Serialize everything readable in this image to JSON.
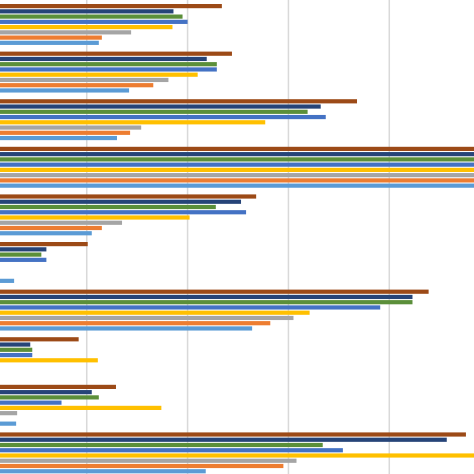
{
  "chart_data": {
    "type": "bar",
    "orientation": "horizontal",
    "grid": true,
    "xlim": [
      0,
      470
    ],
    "gridlines_x": [
      86,
      186,
      286,
      386
    ],
    "categories": [
      "",
      "",
      "",
      "",
      "",
      "",
      "",
      "",
      "",
      ""
    ],
    "series": [
      {
        "color": "#9c4a17",
        "values": [
          220,
          230,
          354,
          474,
          254,
          87,
          425,
          78,
          115,
          462
        ]
      },
      {
        "color": "#264478",
        "values": [
          172,
          205,
          318,
          474,
          239,
          46,
          409,
          30,
          91,
          443
        ]
      },
      {
        "color": "#5b8f3a",
        "values": [
          181,
          215,
          305,
          474,
          214,
          41,
          409,
          32,
          98,
          320
        ]
      },
      {
        "color": "#4472c4",
        "values": [
          186,
          215,
          323,
          474,
          244,
          46,
          377,
          32,
          61,
          340
        ]
      },
      {
        "color": "#ffc000",
        "values": [
          171,
          196,
          263,
          474,
          188,
          0,
          307,
          97,
          160,
          474
        ]
      },
      {
        "color": "#a5a5a5",
        "values": [
          130,
          167,
          140,
          474,
          121,
          0,
          291,
          0,
          17,
          294
        ]
      },
      {
        "color": "#ed7d31",
        "values": [
          101,
          152,
          129,
          474,
          101,
          0,
          268,
          0,
          0,
          281
        ]
      },
      {
        "color": "#5b9bd5",
        "values": [
          98,
          128,
          116,
          474,
          91,
          14,
          250,
          0,
          16,
          204
        ]
      }
    ]
  }
}
